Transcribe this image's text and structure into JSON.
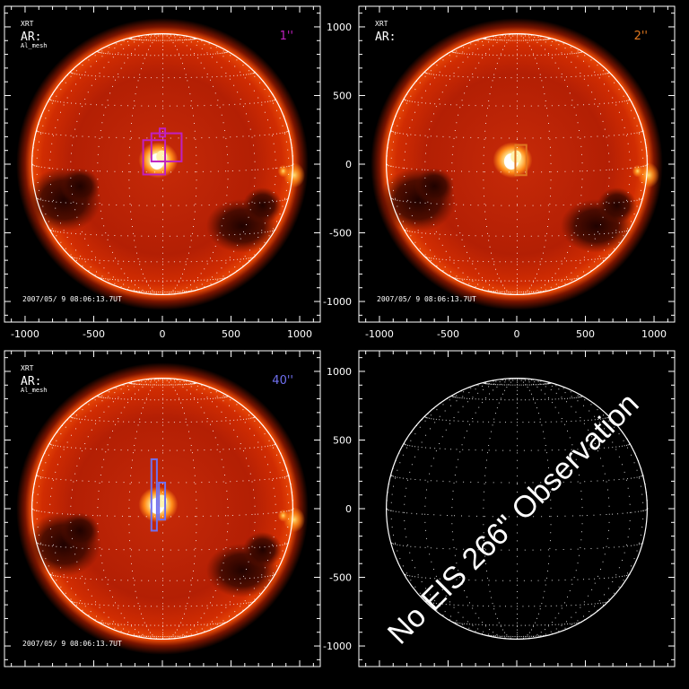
{
  "panels": [
    {
      "image": true,
      "header": {
        "instrument": "XRT",
        "filter": "Al_mesh",
        "region": "AR:"
      },
      "slit_label": "1''",
      "slit_color": "#c020c0",
      "timestamp": "2007/05/ 9 08:06:13.7UT",
      "boxes": [
        {
          "xmin": -140,
          "xmax": 20,
          "ymin": -75,
          "ymax": 175
        },
        {
          "xmin": -80,
          "xmax": 140,
          "ymin": 20,
          "ymax": 225
        },
        {
          "xmin": -20,
          "xmax": 20,
          "ymin": 200,
          "ymax": 260
        }
      ]
    },
    {
      "image": true,
      "header": {
        "instrument": "XRT",
        "filter": "",
        "region": "AR:"
      },
      "slit_label": "2''",
      "slit_color": "#e07820",
      "timestamp": "2007/05/ 9 08:06:13.7UT",
      "boxes": [
        {
          "xmin": -10,
          "xmax": 70,
          "ymin": -80,
          "ymax": 140
        }
      ]
    },
    {
      "image": true,
      "header": {
        "instrument": "XRT",
        "filter": "Al_mesh",
        "region": "AR:"
      },
      "slit_label": "40''",
      "slit_color": "#7070f0",
      "timestamp": "2007/05/ 9 08:06:13.7UT",
      "boxes": [
        {
          "xmin": -80,
          "xmax": -40,
          "ymin": -160,
          "ymax": 360
        },
        {
          "xmin": -25,
          "xmax": 20,
          "ymin": -80,
          "ymax": 190
        }
      ]
    },
    {
      "image": false,
      "header": {
        "instrument": "",
        "filter": "",
        "region": ""
      },
      "slit_label": "",
      "slit_color": "#ffffff",
      "timestamp": "",
      "boxes": [],
      "message": "No EIS 266\" Observation"
    }
  ],
  "axes": {
    "x_ticks": [
      "-1000",
      "-500",
      "0",
      "500",
      "1000"
    ],
    "y_ticks": [
      "1000",
      "500",
      "0",
      "-500",
      "-1000"
    ],
    "range": [
      -1150,
      1150
    ],
    "disk_radius": 950
  }
}
